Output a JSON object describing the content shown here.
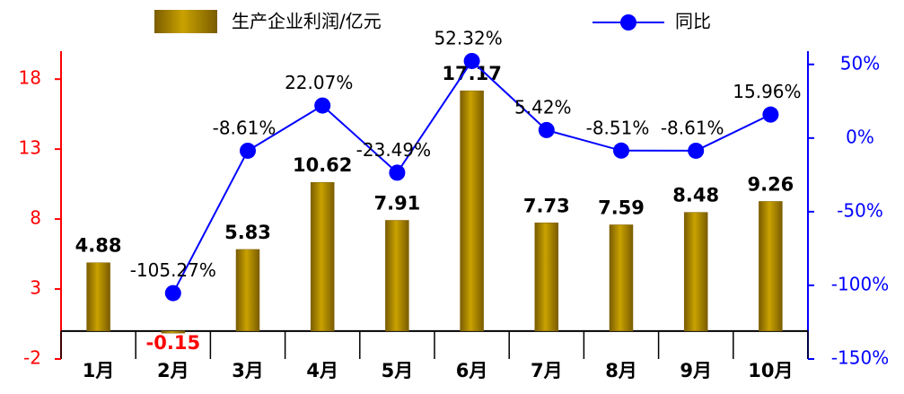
{
  "chart_data": {
    "type": "bar-line",
    "categories": [
      "1月",
      "2月",
      "3月",
      "4月",
      "5月",
      "6月",
      "7月",
      "8月",
      "9月",
      "10月"
    ],
    "series": [
      {
        "name": "生产企业利润/亿元",
        "color": "#c9a200",
        "type": "bar",
        "values": [
          4.88,
          -0.15,
          5.83,
          10.62,
          7.91,
          17.17,
          7.73,
          7.59,
          8.48,
          9.26
        ]
      },
      {
        "name": "同比",
        "color": "#0000ff",
        "type": "line",
        "axis": "y2",
        "values": [
          null,
          -105.27,
          -8.61,
          22.07,
          -23.49,
          52.32,
          5.42,
          -8.51,
          -8.61,
          15.96
        ],
        "value_labels": [
          null,
          "-105.27%",
          "-8.61%",
          "22.07%",
          "-23.49%",
          "52.32%",
          "5.42%",
          "-8.51%",
          "-8.61%",
          "15.96%"
        ]
      }
    ],
    "ylim": [
      -2,
      20
    ],
    "yticks": [
      -2,
      3,
      8,
      13,
      18
    ],
    "ycolor": "#ff0000",
    "y2lim": [
      -150,
      59
    ],
    "y2ticks": [
      {
        "value": -150,
        "label": "-150%"
      },
      {
        "value": -100,
        "label": "-100%"
      },
      {
        "value": -50,
        "label": "-50%"
      },
      {
        "value": 0,
        "label": "0%"
      },
      {
        "value": 50,
        "label": "50%"
      }
    ],
    "y2color": "#0000ff"
  }
}
